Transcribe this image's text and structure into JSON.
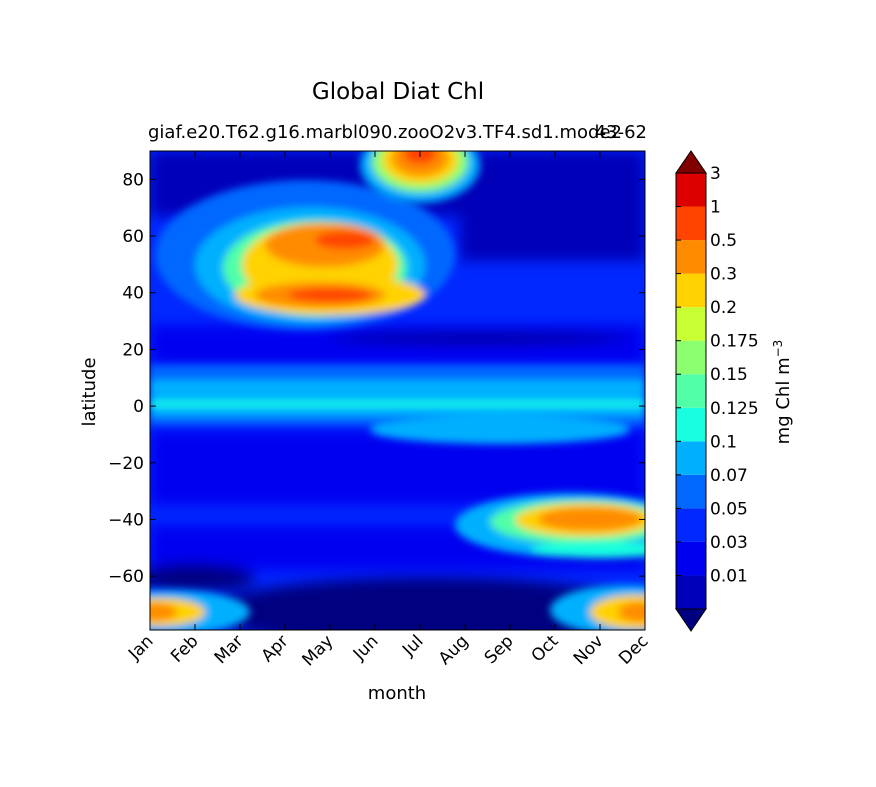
{
  "chart_data": {
    "type": "heatmap",
    "title": "Global Diat Chl",
    "subtitle_left": "giaf.e20.T62.g16.marbl090.zooO2v3.TF4.sd1.mode2",
    "subtitle_right": "43-62",
    "xlabel": "month",
    "ylabel": "latitude",
    "x_ticks": [
      "Jan",
      "Feb",
      "Mar",
      "Apr",
      "May",
      "Jun",
      "Jul",
      "Aug",
      "Sep",
      "Oct",
      "Nov",
      "Dec"
    ],
    "y_ticks": [
      "80",
      "60",
      "40",
      "20",
      "0",
      "−20",
      "−40",
      "−60"
    ],
    "y_tick_values": [
      80,
      60,
      40,
      20,
      0,
      -20,
      -40,
      -60
    ],
    "ylim": [
      -79,
      90
    ],
    "xlim": [
      1,
      12
    ],
    "colorbar": {
      "label": "mg Chl m",
      "label_exponent": "−3",
      "extend": "both",
      "levels": [
        "0.01",
        "0.03",
        "0.05",
        "0.07",
        "0.1",
        "0.125",
        "0.15",
        "0.175",
        "0.2",
        "0.3",
        "0.5",
        "1",
        "3"
      ],
      "colors": [
        "#000080",
        "#0000b8",
        "#0000f0",
        "#0028ff",
        "#0068ff",
        "#00b0ff",
        "#17ffe0",
        "#50ffa8",
        "#8cff6e",
        "#c8ff32",
        "#ffd200",
        "#ff8c00",
        "#ff4400",
        "#dc0000",
        "#800000"
      ]
    },
    "features": [
      {
        "month": 1,
        "lat": 0,
        "value": 0.08
      },
      {
        "month": 5,
        "lat": 40,
        "value": 0.5
      },
      {
        "month": 5.5,
        "lat": 58,
        "value": 0.5
      },
      {
        "month": 7,
        "lat": 85,
        "value": 1
      },
      {
        "month": 11,
        "lat": -38,
        "value": 0.3
      },
      {
        "month": 1.3,
        "lat": -72,
        "value": 0.5
      },
      {
        "month": 12,
        "lat": -72,
        "value": 0.5
      },
      {
        "month": 8.5,
        "lat": 23,
        "value": 0.01
      }
    ]
  }
}
